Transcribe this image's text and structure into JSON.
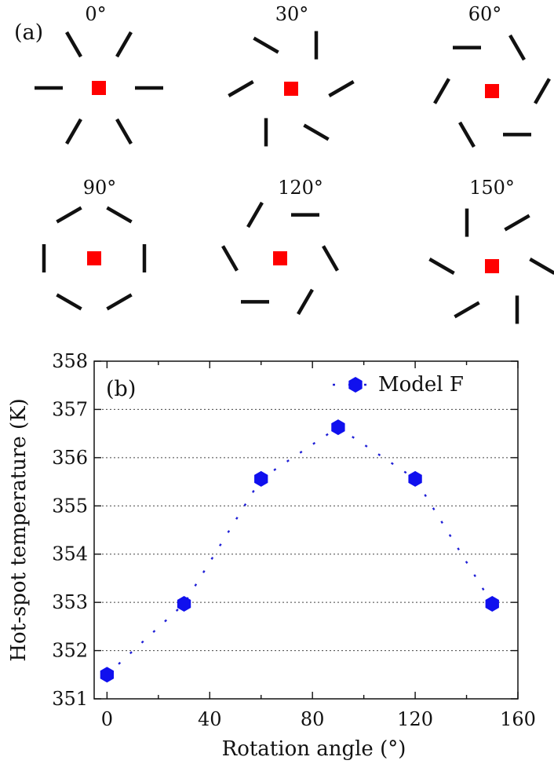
{
  "panel_a": {
    "label": "(a)",
    "diagrams": [
      {
        "angle": 0,
        "label": "0°"
      },
      {
        "angle": 30,
        "label": "30°"
      },
      {
        "angle": 60,
        "label": "60°"
      },
      {
        "angle": 90,
        "label": "90°"
      },
      {
        "angle": 120,
        "label": "120°"
      },
      {
        "angle": 150,
        "label": "150°"
      }
    ],
    "colors": {
      "arms": "#111111",
      "hot_spot": "#ff0000"
    }
  },
  "chart_data": {
    "type": "scatter",
    "panel_label": "(b)",
    "title": "",
    "xlabel": "Rotation angle (°)",
    "ylabel": "Hot-spot temperature (K)",
    "xlim": [
      -5,
      160
    ],
    "ylim": [
      351,
      358
    ],
    "xticks": [
      0,
      40,
      80,
      120,
      160
    ],
    "xticks_minor": [
      20,
      60,
      100,
      140
    ],
    "yticks": [
      351,
      352,
      353,
      354,
      355,
      356,
      357,
      358
    ],
    "grid": "horizontal dotted",
    "legend_position": "top-right",
    "series": [
      {
        "name": "Model F",
        "marker": "hexagon",
        "line": "dotted",
        "color": "#1010ee",
        "x": [
          0,
          30,
          60,
          90,
          120,
          150
        ],
        "y": [
          351.5,
          352.97,
          355.56,
          356.63,
          355.56,
          352.97
        ]
      }
    ]
  }
}
